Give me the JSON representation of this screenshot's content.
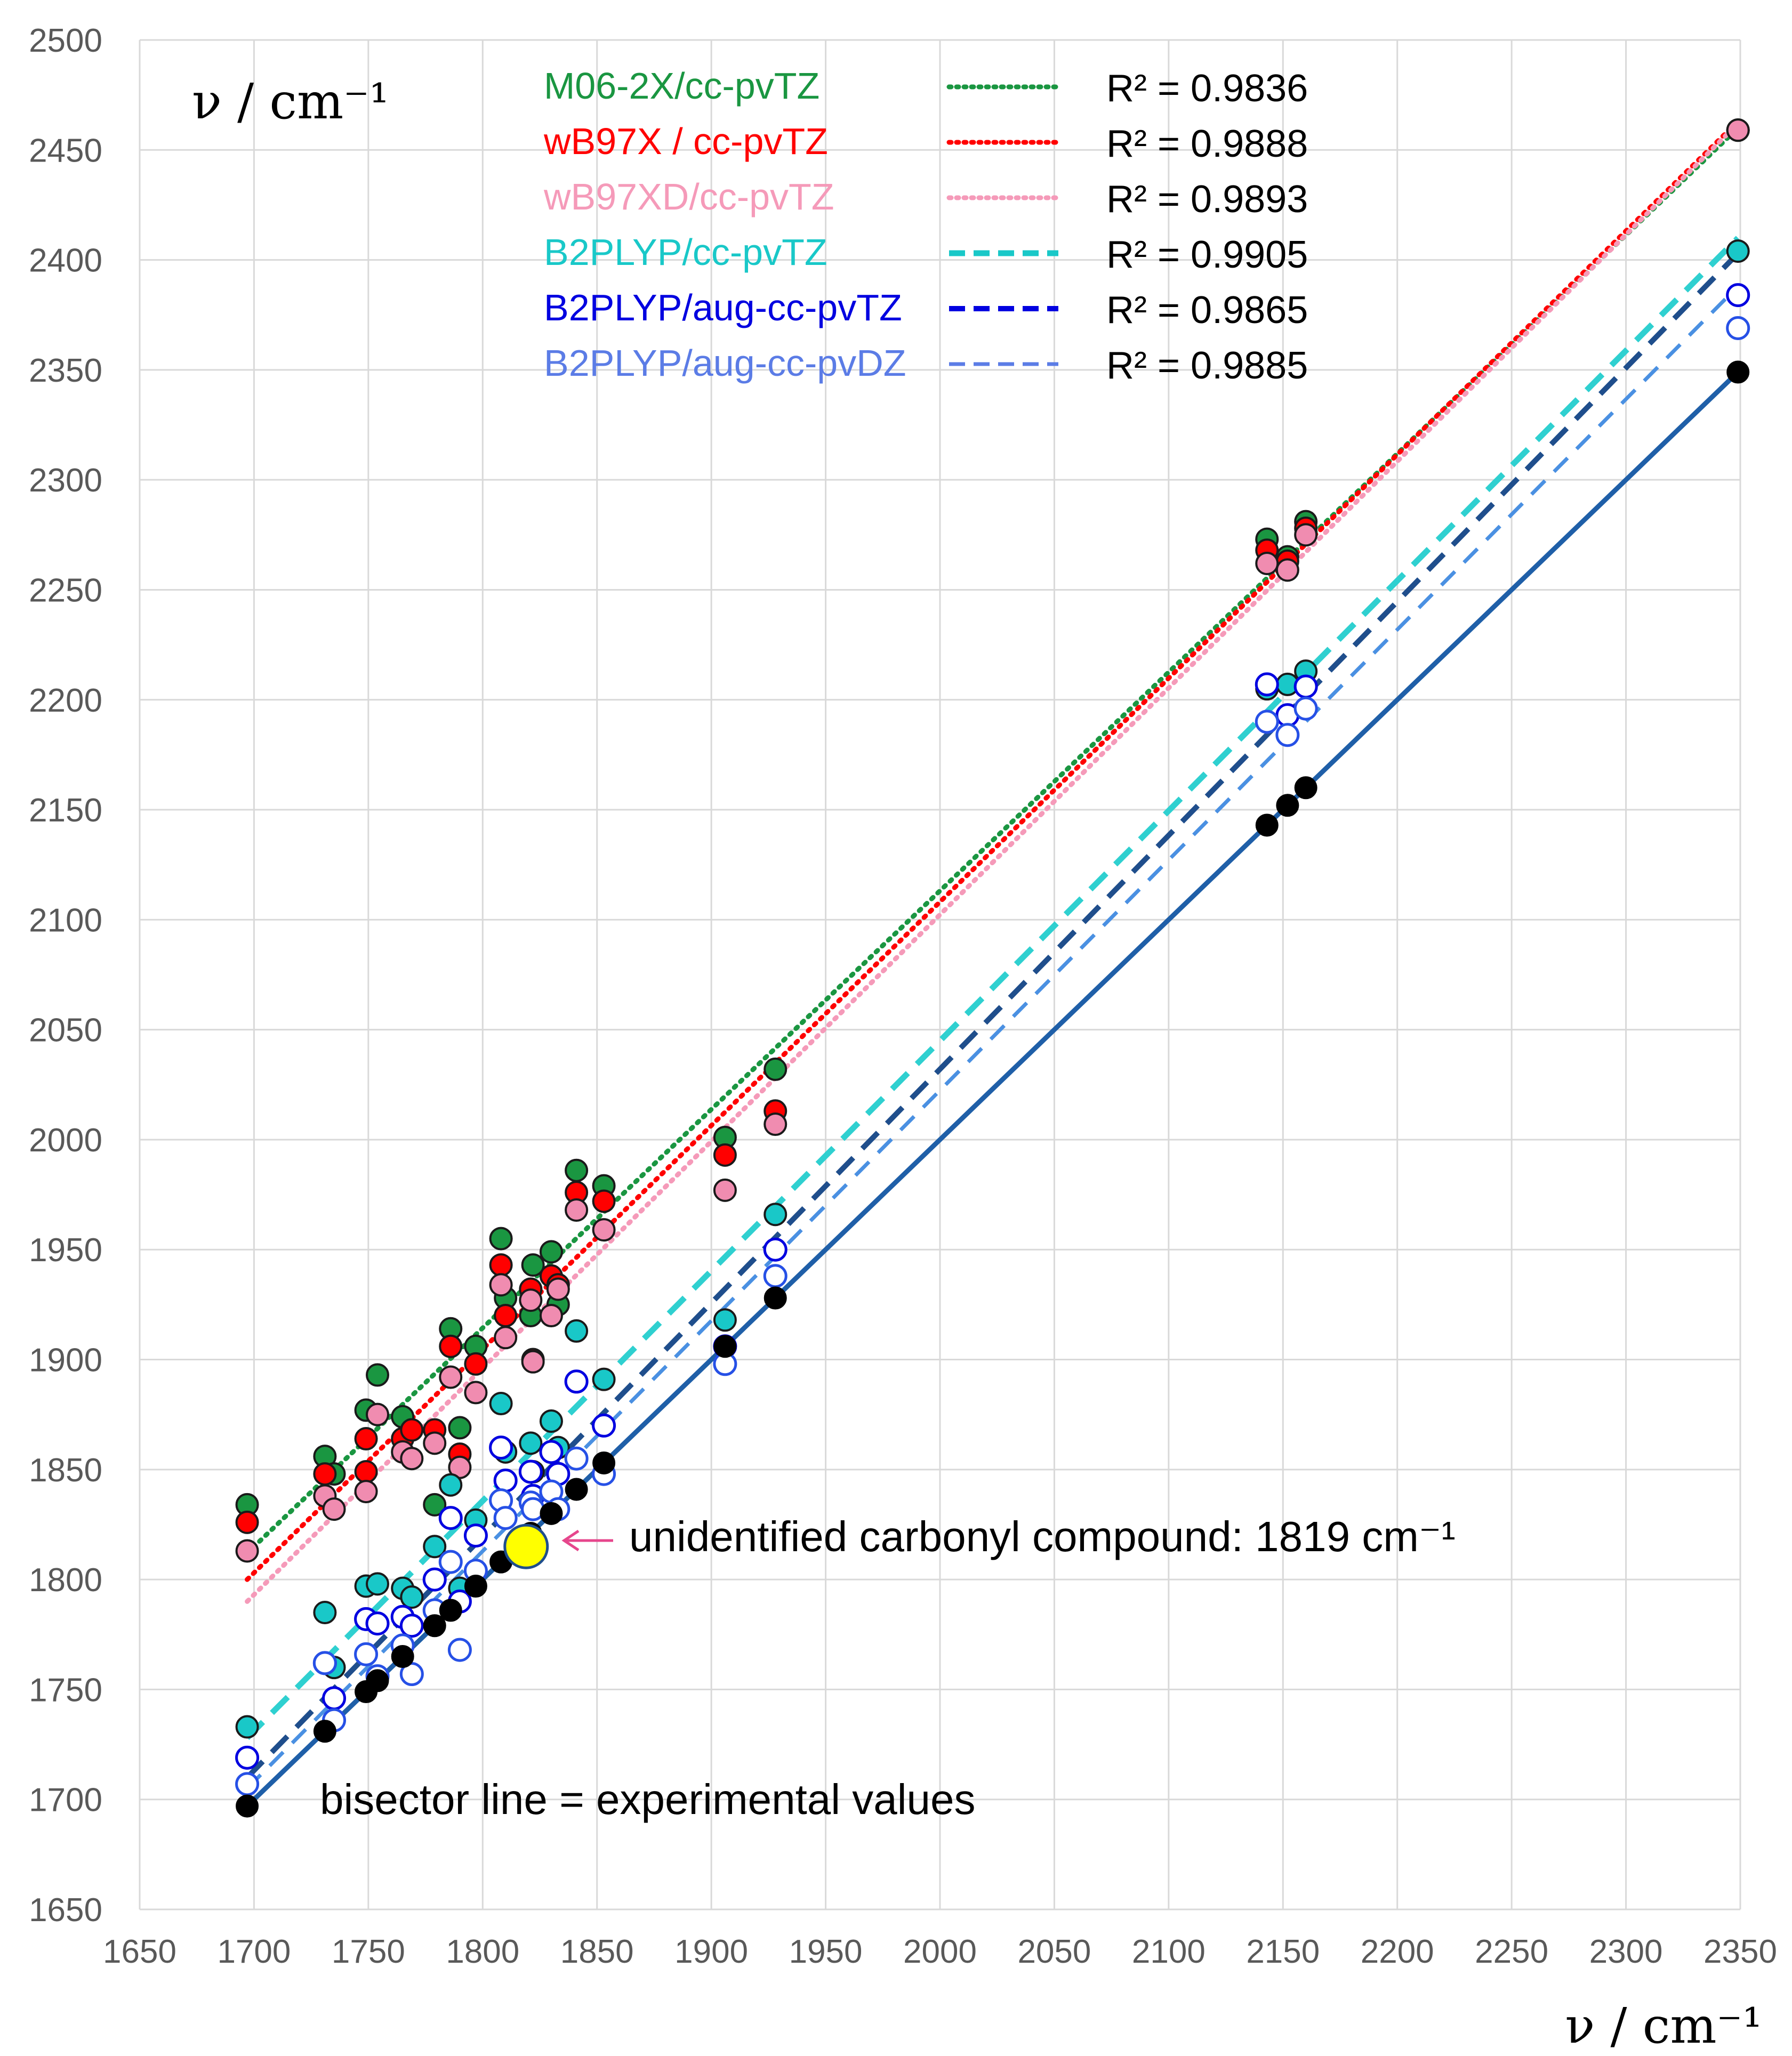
{
  "chart_data": {
    "type": "scatter",
    "title": "",
    "xlabel": "ν / cm⁻¹",
    "ylabel": "ν / cm⁻¹",
    "xlim": [
      1650,
      2350
    ],
    "ylim": [
      1650,
      2500
    ],
    "grid": true,
    "x_ticks": [
      "1650",
      "1700",
      "1750",
      "1800",
      "1850",
      "1900",
      "1950",
      "2000",
      "2050",
      "2100",
      "2150",
      "2200",
      "2250",
      "2300",
      "2350"
    ],
    "y_ticks": [
      "1650",
      "1700",
      "1750",
      "1800",
      "1850",
      "1900",
      "1950",
      "2000",
      "2050",
      "2100",
      "2150",
      "2200",
      "2250",
      "2300",
      "2350",
      "2400",
      "2450",
      "2500"
    ],
    "legend_position": "top-center",
    "series": [
      {
        "name": "M06-2X/cc-pvTZ",
        "color": "#1a9641",
        "line": "dotted",
        "r2": "R² = 0.9836",
        "fit": [
          [
            1697,
            1812
          ],
          [
            2349,
            2460
          ]
        ],
        "points": [
          [
            1697,
            1834
          ],
          [
            1731,
            1856
          ],
          [
            1735,
            1848
          ],
          [
            1749,
            1877
          ],
          [
            1754,
            1893
          ],
          [
            1765,
            1874
          ],
          [
            1769,
            1868
          ],
          [
            1779,
            1834
          ],
          [
            1786,
            1914
          ],
          [
            1790,
            1869
          ],
          [
            1797,
            1906
          ],
          [
            1808,
            1955
          ],
          [
            1810,
            1928
          ],
          [
            1821,
            1920
          ],
          [
            1822,
            1943
          ],
          [
            1830,
            1949
          ],
          [
            1833,
            1925
          ],
          [
            1841,
            1986
          ],
          [
            1853,
            1979
          ],
          [
            1906,
            2001
          ],
          [
            1928,
            2032
          ],
          [
            2143,
            2273
          ],
          [
            2152,
            2265
          ],
          [
            2160,
            2281
          ],
          [
            2349,
            2459
          ]
        ]
      },
      {
        "name": "wB97X / cc-pvTZ",
        "color": "#ff0000",
        "line": "dotted",
        "r2": "R² = 0.9888",
        "fit": [
          [
            1697,
            1800
          ],
          [
            2349,
            2463
          ]
        ],
        "points": [
          [
            1697,
            1826
          ],
          [
            1731,
            1848
          ],
          [
            1749,
            1864
          ],
          [
            1749,
            1849
          ],
          [
            1765,
            1864
          ],
          [
            1769,
            1868
          ],
          [
            1779,
            1868
          ],
          [
            1786,
            1906
          ],
          [
            1790,
            1857
          ],
          [
            1797,
            1898
          ],
          [
            1808,
            1943
          ],
          [
            1810,
            1920
          ],
          [
            1821,
            1932
          ],
          [
            1822,
            1900
          ],
          [
            1830,
            1938
          ],
          [
            1833,
            1934
          ],
          [
            1841,
            1976
          ],
          [
            1853,
            1972
          ],
          [
            1906,
            1993
          ],
          [
            1928,
            2013
          ],
          [
            2143,
            2268
          ],
          [
            2152,
            2263
          ],
          [
            2160,
            2278
          ],
          [
            2349,
            2459
          ]
        ]
      },
      {
        "name": "wB97XD/cc-pvTZ",
        "color": "#f08cb0",
        "line": "dotted",
        "r2": "R² = 0.9893",
        "fit": [
          [
            1697,
            1790
          ],
          [
            2349,
            2462
          ]
        ],
        "points": [
          [
            1697,
            1813
          ],
          [
            1731,
            1838
          ],
          [
            1735,
            1832
          ],
          [
            1749,
            1840
          ],
          [
            1754,
            1875
          ],
          [
            1765,
            1858
          ],
          [
            1769,
            1855
          ],
          [
            1779,
            1862
          ],
          [
            1786,
            1892
          ],
          [
            1790,
            1851
          ],
          [
            1797,
            1885
          ],
          [
            1808,
            1934
          ],
          [
            1810,
            1910
          ],
          [
            1821,
            1927
          ],
          [
            1822,
            1899
          ],
          [
            1830,
            1920
          ],
          [
            1833,
            1932
          ],
          [
            1841,
            1968
          ],
          [
            1853,
            1959
          ],
          [
            1906,
            1977
          ],
          [
            1928,
            2007
          ],
          [
            2143,
            2262
          ],
          [
            2152,
            2259
          ],
          [
            2160,
            2275
          ],
          [
            2349,
            2459
          ]
        ]
      },
      {
        "name": "B2PLYP/cc-pvTZ",
        "color": "#19c8c8",
        "line": "dashed-thick",
        "r2": "R² = 0.9905",
        "fit": [
          [
            1697,
            1728
          ],
          [
            2349,
            2410
          ]
        ],
        "points": [
          [
            1697,
            1733
          ],
          [
            1731,
            1785
          ],
          [
            1735,
            1760
          ],
          [
            1749,
            1797
          ],
          [
            1754,
            1798
          ],
          [
            1765,
            1796
          ],
          [
            1769,
            1792
          ],
          [
            1779,
            1815
          ],
          [
            1786,
            1843
          ],
          [
            1790,
            1796
          ],
          [
            1797,
            1827
          ],
          [
            1808,
            1880
          ],
          [
            1810,
            1858
          ],
          [
            1821,
            1862
          ],
          [
            1822,
            1849
          ],
          [
            1830,
            1872
          ],
          [
            1833,
            1860
          ],
          [
            1841,
            1913
          ],
          [
            1853,
            1891
          ],
          [
            1906,
            1918
          ],
          [
            1928,
            1966
          ],
          [
            2143,
            2205
          ],
          [
            2152,
            2207
          ],
          [
            2160,
            2213
          ],
          [
            2349,
            2404
          ]
        ]
      },
      {
        "name": "B2PLYP/aug-cc-pvTZ",
        "color": "#0000e0",
        "line": "dashed",
        "r2": "R² = 0.9865",
        "fit": [
          [
            1697,
            1710
          ],
          [
            2349,
            2403
          ]
        ],
        "points": [
          [
            1697,
            1719
          ],
          [
            1731,
            1762
          ],
          [
            1735,
            1746
          ],
          [
            1749,
            1782
          ],
          [
            1754,
            1780
          ],
          [
            1765,
            1783
          ],
          [
            1769,
            1779
          ],
          [
            1779,
            1800
          ],
          [
            1786,
            1828
          ],
          [
            1790,
            1790
          ],
          [
            1797,
            1820
          ],
          [
            1808,
            1860
          ],
          [
            1810,
            1845
          ],
          [
            1821,
            1849
          ],
          [
            1822,
            1838
          ],
          [
            1830,
            1858
          ],
          [
            1833,
            1848
          ],
          [
            1841,
            1890
          ],
          [
            1853,
            1870
          ],
          [
            1906,
            1906
          ],
          [
            1928,
            1950
          ],
          [
            2143,
            2207
          ],
          [
            2152,
            2193
          ],
          [
            2160,
            2206
          ],
          [
            2349,
            2384
          ]
        ]
      },
      {
        "name": "B2PLYP/aug-cc-pvDZ",
        "color": "#5b7ce6",
        "line": "dashed-thin",
        "r2": "R² = 0.9885",
        "fit": [
          [
            1697,
            1705
          ],
          [
            2349,
            2388
          ]
        ],
        "points": [
          [
            1697,
            1707
          ],
          [
            1731,
            1762
          ],
          [
            1735,
            1736
          ],
          [
            1749,
            1766
          ],
          [
            1754,
            1756
          ],
          [
            1765,
            1770
          ],
          [
            1769,
            1757
          ],
          [
            1779,
            1786
          ],
          [
            1786,
            1808
          ],
          [
            1790,
            1768
          ],
          [
            1797,
            1804
          ],
          [
            1808,
            1836
          ],
          [
            1810,
            1828
          ],
          [
            1821,
            1835
          ],
          [
            1822,
            1832
          ],
          [
            1830,
            1840
          ],
          [
            1833,
            1832
          ],
          [
            1841,
            1855
          ],
          [
            1853,
            1848
          ],
          [
            1906,
            1898
          ],
          [
            1928,
            1938
          ],
          [
            2143,
            2190
          ],
          [
            2152,
            2184
          ],
          [
            2160,
            2196
          ],
          [
            2349,
            2369
          ]
        ]
      },
      {
        "name": "experimental",
        "color": "#000000",
        "line": "solid",
        "r2": "",
        "fit": [
          [
            1697,
            1697
          ],
          [
            2349,
            2349
          ]
        ],
        "points": [
          [
            1697,
            1697
          ],
          [
            1731,
            1731
          ],
          [
            1749,
            1749
          ],
          [
            1754,
            1754
          ],
          [
            1765,
            1765
          ],
          [
            1779,
            1779
          ],
          [
            1786,
            1786
          ],
          [
            1797,
            1797
          ],
          [
            1808,
            1808
          ],
          [
            1821,
            1821
          ],
          [
            1830,
            1830
          ],
          [
            1841,
            1841
          ],
          [
            1853,
            1853
          ],
          [
            1906,
            1906
          ],
          [
            1928,
            1928
          ],
          [
            2143,
            2143
          ],
          [
            2152,
            2152
          ],
          [
            2160,
            2160
          ],
          [
            2349,
            2349
          ]
        ]
      }
    ],
    "highlight": {
      "x": 1819,
      "y": 1815,
      "color": "#ffff00"
    },
    "annotations": {
      "unidentified": "unidentified carbonyl compound: 1819 cm⁻¹",
      "bisector": "bisector line = experimental values"
    }
  }
}
